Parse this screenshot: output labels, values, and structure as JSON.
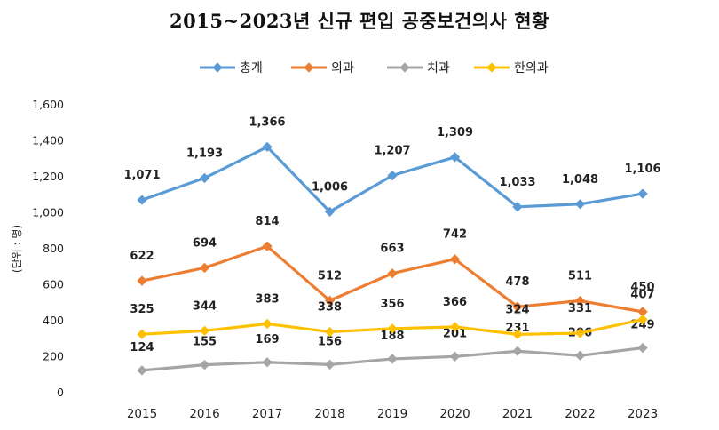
{
  "title": "2015~2023년 신규 편입 공중보건의사 현황",
  "chart_data": {
    "type": "line",
    "title": "2015~2023년 신규 편입 공중보건의사 현황",
    "ylabel": "(단위 : 명)",
    "xlabel": "",
    "x": [
      "2015",
      "2016",
      "2017",
      "2018",
      "2019",
      "2020",
      "2021",
      "2022",
      "2023"
    ],
    "ylim": [
      0,
      1600
    ],
    "yticks": [
      "0",
      "200",
      "400",
      "600",
      "800",
      "1,000",
      "1,200",
      "1,400",
      "1,600"
    ],
    "grid": false,
    "legend_position": "top",
    "series": [
      {
        "name": "총계",
        "color": "#5b9bd5",
        "values": [
          1071,
          1193,
          1366,
          1006,
          1207,
          1309,
          1033,
          1048,
          1106
        ],
        "labels": [
          "1,071",
          "1,193",
          "1,366",
          "1,006",
          "1,207",
          "1,309",
          "1,033",
          "1,048",
          "1,106"
        ]
      },
      {
        "name": "의과",
        "color": "#ed7d31",
        "values": [
          622,
          694,
          814,
          512,
          663,
          742,
          478,
          511,
          450
        ],
        "labels": [
          "622",
          "694",
          "814",
          "512",
          "663",
          "742",
          "478",
          "511",
          "450"
        ]
      },
      {
        "name": "치과",
        "color": "#a5a5a5",
        "values": [
          124,
          155,
          169,
          156,
          188,
          201,
          231,
          206,
          249
        ],
        "labels": [
          "124",
          "155",
          "169",
          "156",
          "188",
          "201",
          "231",
          "206",
          "249"
        ]
      },
      {
        "name": "한의과",
        "color": "#ffc000",
        "values": [
          325,
          344,
          383,
          338,
          356,
          366,
          324,
          331,
          407
        ],
        "labels": [
          "325",
          "344",
          "383",
          "338",
          "356",
          "366",
          "324",
          "331",
          "407"
        ]
      }
    ]
  }
}
